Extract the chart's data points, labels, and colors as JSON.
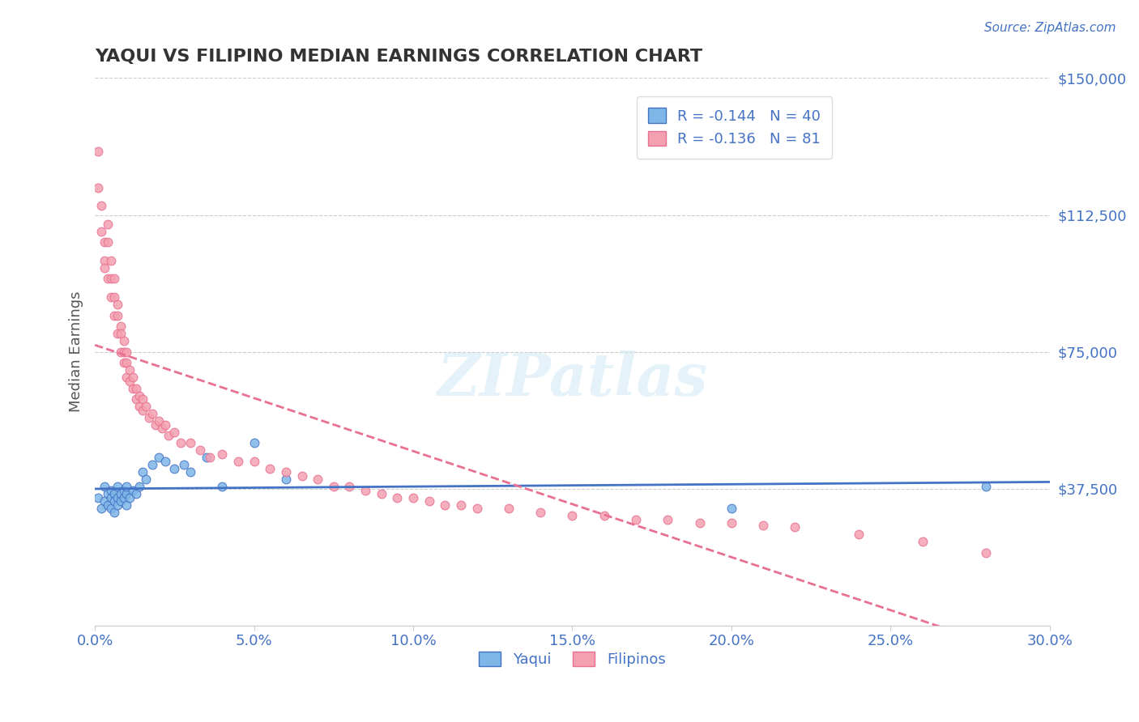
{
  "title": "YAQUI VS FILIPINO MEDIAN EARNINGS CORRELATION CHART",
  "source": "Source: ZipAtlas.com",
  "xlabel": "",
  "ylabel": "Median Earnings",
  "xlim": [
    0.0,
    0.3
  ],
  "ylim": [
    0,
    150000
  ],
  "yticks": [
    0,
    37500,
    75000,
    112500,
    150000
  ],
  "ytick_labels": [
    "",
    "$37,500",
    "$75,000",
    "$112,500",
    "$150,000"
  ],
  "xticks": [
    0.0,
    0.05,
    0.1,
    0.15,
    0.2,
    0.25,
    0.3
  ],
  "xtick_labels": [
    "0.0%",
    "5.0%",
    "10.0%",
    "15.0%",
    "20.0%",
    "25.0%",
    "30.0%"
  ],
  "yaqui_color": "#7EB6E8",
  "filipino_color": "#F4A0B0",
  "yaqui_line_color": "#4472C4",
  "filipino_line_color": "#E87090",
  "R_yaqui": -0.144,
  "N_yaqui": 40,
  "R_filipino": -0.136,
  "N_filipino": 81,
  "background_color": "#FFFFFF",
  "grid_color": "#CCCCCC",
  "watermark": "ZIPatlas",
  "title_color": "#333333",
  "axis_label_color": "#555555",
  "tick_label_color": "#4472C4",
  "legend_text_color": "#4472C4",
  "yaqui_scatter_x": [
    0.001,
    0.002,
    0.003,
    0.003,
    0.004,
    0.004,
    0.005,
    0.005,
    0.005,
    0.006,
    0.006,
    0.006,
    0.007,
    0.007,
    0.007,
    0.008,
    0.008,
    0.009,
    0.009,
    0.01,
    0.01,
    0.01,
    0.011,
    0.012,
    0.013,
    0.014,
    0.015,
    0.016,
    0.018,
    0.02,
    0.022,
    0.025,
    0.028,
    0.03,
    0.035,
    0.04,
    0.05,
    0.06,
    0.2,
    0.28
  ],
  "yaqui_scatter_y": [
    35000,
    32000,
    38000,
    34000,
    36000,
    33000,
    37000,
    35000,
    32000,
    36000,
    34000,
    31000,
    38000,
    35000,
    33000,
    36000,
    34000,
    37000,
    35000,
    36000,
    33000,
    38000,
    35000,
    37000,
    36000,
    38000,
    42000,
    40000,
    44000,
    46000,
    45000,
    43000,
    44000,
    42000,
    46000,
    38000,
    50000,
    40000,
    32000,
    38000
  ],
  "filipino_scatter_x": [
    0.001,
    0.001,
    0.002,
    0.002,
    0.003,
    0.003,
    0.003,
    0.004,
    0.004,
    0.004,
    0.005,
    0.005,
    0.005,
    0.006,
    0.006,
    0.006,
    0.007,
    0.007,
    0.007,
    0.008,
    0.008,
    0.008,
    0.009,
    0.009,
    0.009,
    0.01,
    0.01,
    0.01,
    0.011,
    0.011,
    0.012,
    0.012,
    0.013,
    0.013,
    0.014,
    0.014,
    0.015,
    0.015,
    0.016,
    0.017,
    0.018,
    0.019,
    0.02,
    0.021,
    0.022,
    0.023,
    0.025,
    0.027,
    0.03,
    0.033,
    0.036,
    0.04,
    0.045,
    0.05,
    0.055,
    0.06,
    0.065,
    0.07,
    0.075,
    0.08,
    0.085,
    0.09,
    0.095,
    0.1,
    0.105,
    0.11,
    0.115,
    0.12,
    0.13,
    0.14,
    0.15,
    0.16,
    0.17,
    0.18,
    0.19,
    0.2,
    0.21,
    0.22,
    0.24,
    0.26,
    0.28
  ],
  "filipino_scatter_y": [
    130000,
    120000,
    115000,
    108000,
    105000,
    100000,
    98000,
    110000,
    105000,
    95000,
    100000,
    95000,
    90000,
    95000,
    90000,
    85000,
    88000,
    85000,
    80000,
    82000,
    80000,
    75000,
    78000,
    75000,
    72000,
    75000,
    72000,
    68000,
    70000,
    67000,
    68000,
    65000,
    65000,
    62000,
    63000,
    60000,
    62000,
    59000,
    60000,
    57000,
    58000,
    55000,
    56000,
    54000,
    55000,
    52000,
    53000,
    50000,
    50000,
    48000,
    46000,
    47000,
    45000,
    45000,
    43000,
    42000,
    41000,
    40000,
    38000,
    38000,
    37000,
    36000,
    35000,
    35000,
    34000,
    33000,
    33000,
    32000,
    32000,
    31000,
    30000,
    30000,
    29000,
    29000,
    28000,
    28000,
    27500,
    27000,
    25000,
    23000,
    20000
  ]
}
